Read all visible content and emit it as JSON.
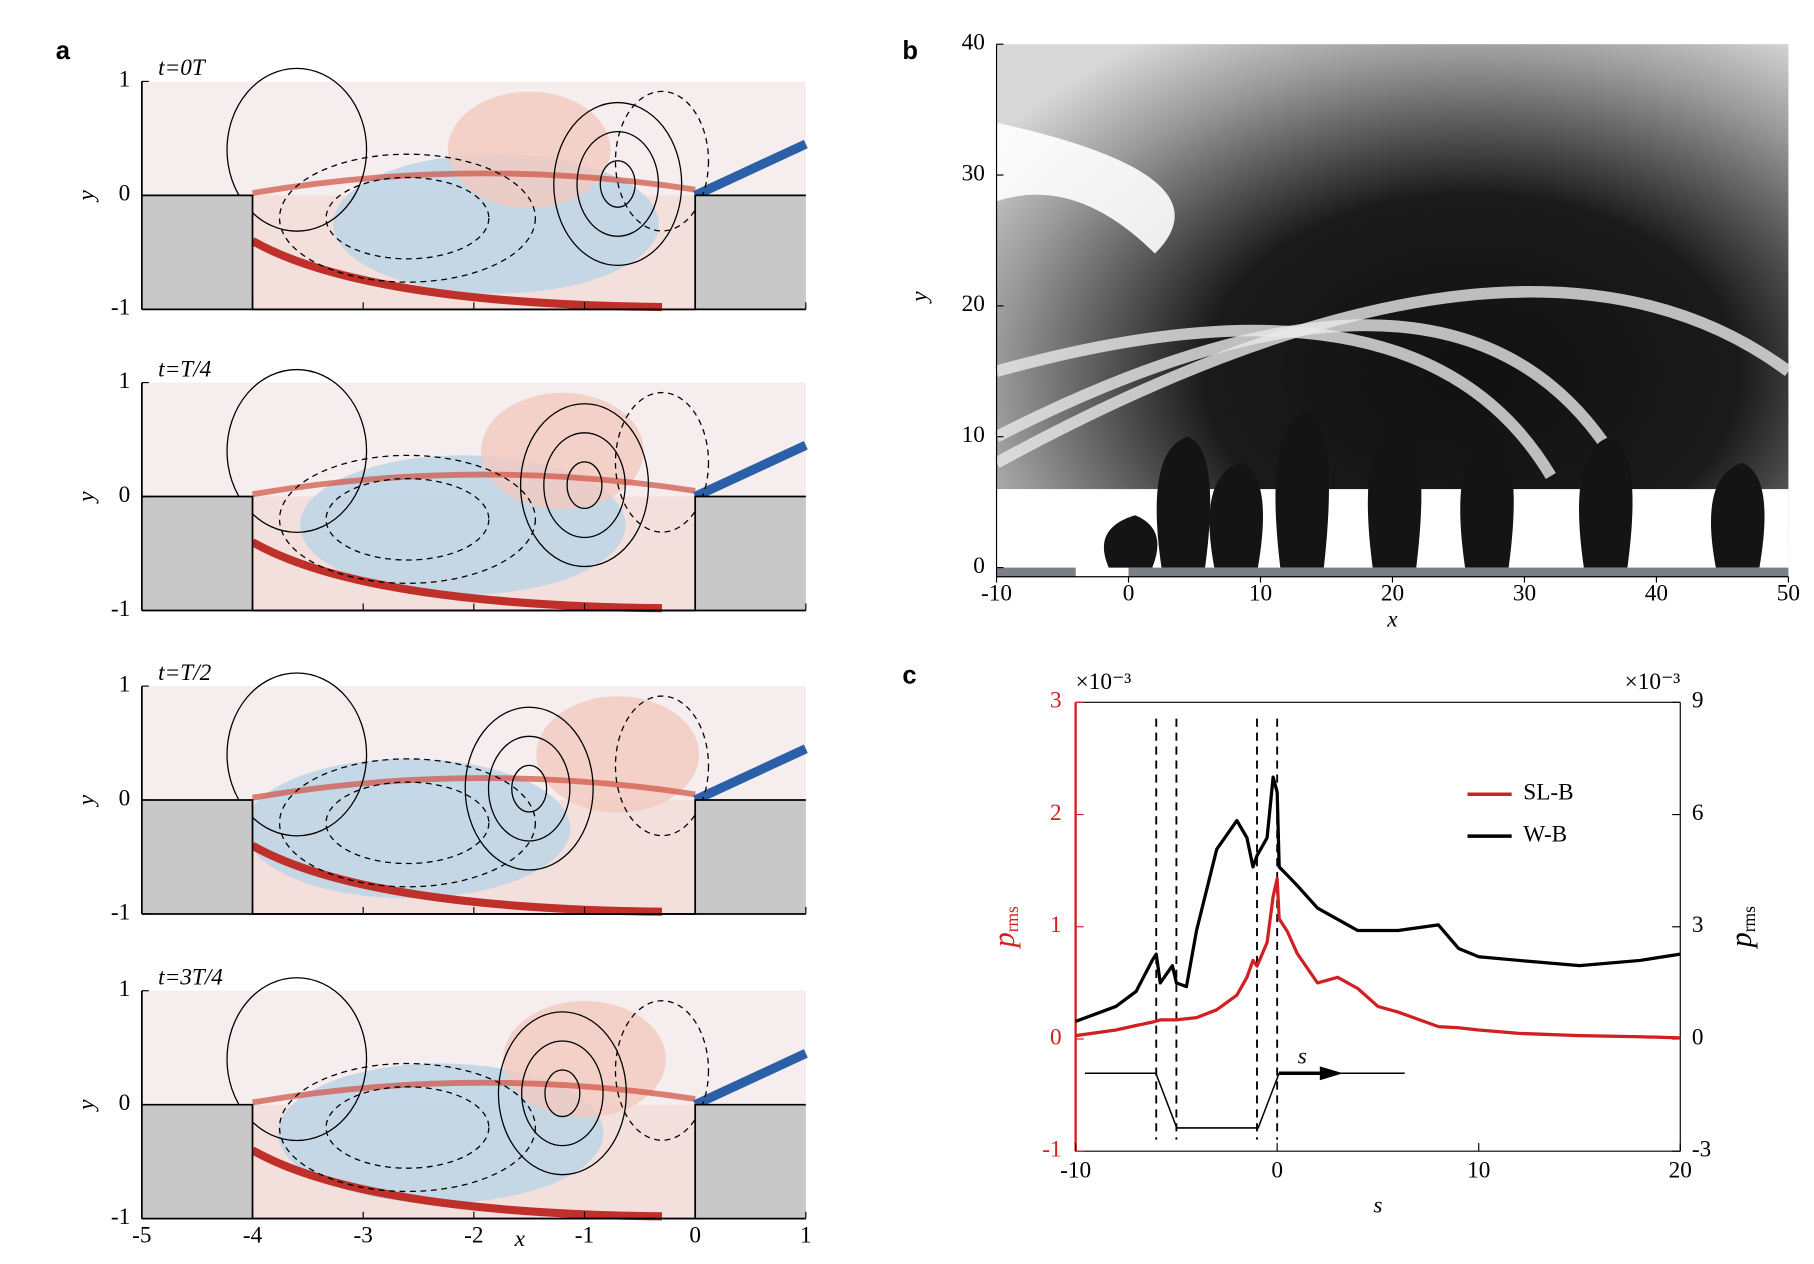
{
  "chart_data": [
    {
      "type": "contour",
      "label": "a",
      "xlabel": "x",
      "ylabel": "y",
      "xlim": [
        -5,
        1
      ],
      "ylim": [
        -1,
        1
      ],
      "xticks": [
        -5,
        -4,
        -3,
        -2,
        -1,
        0,
        1
      ],
      "yticks": [
        -1,
        0,
        1
      ],
      "panels": [
        {
          "title": "t=0T"
        },
        {
          "title": "t=T/4"
        },
        {
          "title": "t=T/2"
        },
        {
          "title": "t=3T/4"
        }
      ]
    },
    {
      "type": "field",
      "label": "b",
      "xlabel": "x",
      "ylabel": "y",
      "xlim": [
        -10,
        50
      ],
      "ylim": [
        -0.7,
        40
      ],
      "xticks": [
        -10,
        0,
        10,
        20,
        30,
        40,
        50
      ],
      "yticks": [
        0,
        10,
        20,
        30,
        40
      ]
    },
    {
      "type": "line",
      "label": "c",
      "xlabel": "s",
      "ylabel": "p",
      "ylabel_sub": "rms",
      "y_multiplier": "×10⁻³",
      "y2_multiplier": "×10⁻³",
      "y_axis_color": "#d02020",
      "xlim": [
        -10,
        20
      ],
      "ylim": [
        -1,
        3
      ],
      "y2lim": [
        -3,
        9
      ],
      "xticks": [
        -10,
        0,
        10,
        20
      ],
      "yticks": [
        -1,
        0,
        1,
        2,
        3
      ],
      "y2ticks": [
        -3,
        0,
        3,
        6,
        9
      ],
      "vlines": [
        -6,
        -5,
        -1,
        0
      ],
      "sketch_label": "s",
      "legend": "upper right",
      "x": [
        -10,
        -8,
        -7,
        -6.2,
        -6,
        -5.8,
        -5.2,
        -5,
        -4.5,
        -4,
        -3,
        -2,
        -1.5,
        -1.2,
        -1,
        -0.5,
        -0.2,
        0,
        0.1,
        0.5,
        1,
        2,
        3,
        4,
        5,
        6,
        8,
        9,
        10,
        12,
        15,
        18,
        20
      ],
      "series": [
        {
          "name": "SL-B",
          "color": "#d02020",
          "values": [
            0.03,
            0.08,
            0.12,
            0.15,
            0.16,
            0.17,
            0.17,
            0.17,
            0.18,
            0.19,
            0.26,
            0.39,
            0.55,
            0.7,
            0.65,
            0.86,
            1.27,
            1.43,
            1.07,
            0.96,
            0.76,
            0.5,
            0.55,
            0.45,
            0.29,
            0.24,
            0.11,
            0.1,
            0.08,
            0.05,
            0.03,
            0.02,
            0.01
          ]
        },
        {
          "name": "W-B",
          "color": "#000000",
          "axis": "y2",
          "values": [
            0.47,
            0.87,
            1.27,
            2.1,
            2.27,
            1.5,
            1.96,
            1.5,
            1.4,
            2.9,
            5.07,
            5.84,
            5.38,
            4.6,
            4.9,
            5.38,
            7.0,
            6.6,
            4.6,
            4.38,
            4.1,
            3.5,
            3.2,
            2.9,
            2.9,
            2.9,
            3.05,
            2.42,
            2.2,
            2.1,
            1.96,
            2.1,
            2.27
          ]
        }
      ]
    }
  ]
}
